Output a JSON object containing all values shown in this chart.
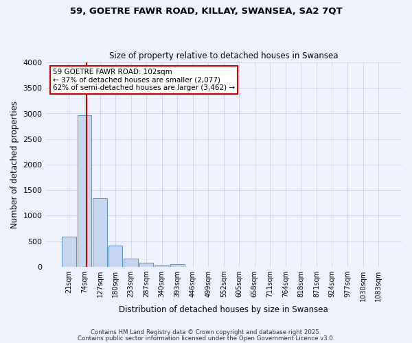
{
  "title1": "59, GOETRE FAWR ROAD, KILLAY, SWANSEA, SA2 7QT",
  "title2": "Size of property relative to detached houses in Swansea",
  "xlabel": "Distribution of detached houses by size in Swansea",
  "ylabel": "Number of detached properties",
  "bar_labels": [
    "21sqm",
    "74sqm",
    "127sqm",
    "180sqm",
    "233sqm",
    "287sqm",
    "340sqm",
    "393sqm",
    "446sqm",
    "499sqm",
    "552sqm",
    "605sqm",
    "658sqm",
    "711sqm",
    "764sqm",
    "818sqm",
    "871sqm",
    "924sqm",
    "977sqm",
    "1030sqm",
    "1083sqm"
  ],
  "bar_values": [
    590,
    2970,
    1340,
    420,
    165,
    75,
    30,
    45,
    0,
    0,
    0,
    0,
    0,
    0,
    0,
    0,
    0,
    0,
    0,
    0,
    0
  ],
  "bar_color": "#c5d8f0",
  "bar_edge_color": "#5b8fc9",
  "vline_color": "#cc0000",
  "ylim": [
    0,
    4000
  ],
  "yticks": [
    0,
    500,
    1000,
    1500,
    2000,
    2500,
    3000,
    3500,
    4000
  ],
  "annotation_title": "59 GOETRE FAWR ROAD: 102sqm",
  "annotation_line1": "← 37% of detached houses are smaller (2,077)",
  "annotation_line2": "62% of semi-detached houses are larger (3,462) →",
  "annotation_box_color": "#ffffff",
  "annotation_box_edge": "#cc0000",
  "footnote1": "Contains HM Land Registry data © Crown copyright and database right 2025.",
  "footnote2": "Contains public sector information licensed under the Open Government Licence v3.0.",
  "bg_color": "#eef2fc",
  "grid_color": "#c8d0e8"
}
